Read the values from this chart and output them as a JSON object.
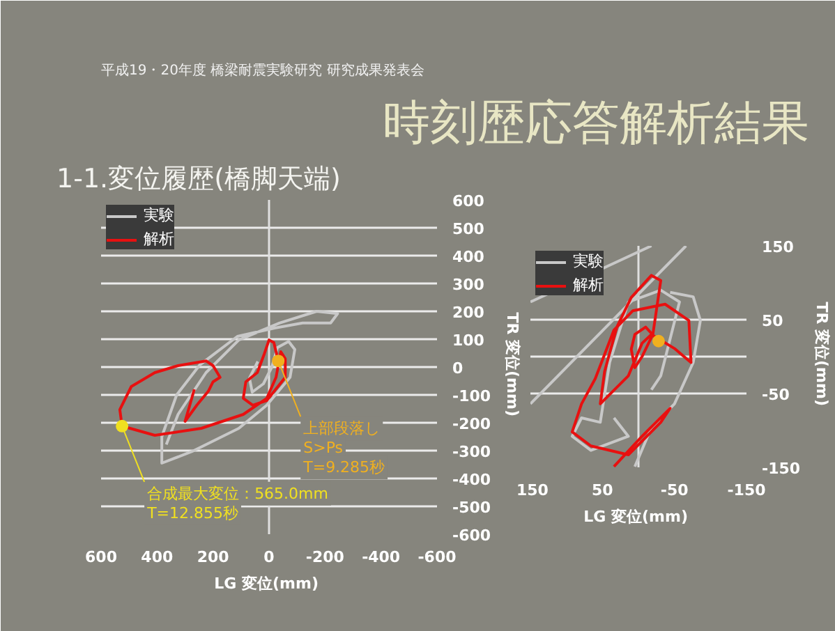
{
  "chart_data": [
    {
      "type": "line",
      "title": "時刻歴応答解析結果",
      "subtitle": "1-1.変位履歴(橋脚天端)",
      "annotations": [
        "平成19・20年度 橋梁耐震実験研究 研究成果発表会",
        {
          "text": "上部段落し\nS>Ps\nT=9.285秒",
          "x": -33,
          "y": 22
        },
        {
          "text": "合成最大変位：565.0mm\nT=12.855秒",
          "x": 525,
          "y": -212
        }
      ],
      "xlabel": "LG  変位(mm)",
      "ylabel": "TR  変位(mm)",
      "xlim": [
        600,
        -600
      ],
      "ylim": [
        -600,
        600
      ],
      "xticks": [
        600,
        400,
        200,
        0,
        -200,
        -400,
        -600
      ],
      "yticks": [
        -600,
        -500,
        -400,
        -300,
        -200,
        -100,
        0,
        100,
        200,
        300,
        400,
        500,
        600
      ],
      "grid": "y",
      "legend": "top left",
      "ref_lines": [
        {
          "axis": "x",
          "value": 0,
          "label": null,
          "color": "#e0e0e0"
        }
      ],
      "series": [
        {
          "name": "実験",
          "color": "#c8c8c8",
          "x": [
            367,
            325,
            225,
            108,
            -37,
            -170,
            -245,
            -220,
            -120,
            -20,
            113,
            247,
            330,
            383,
            383,
            275,
            108,
            8,
            -75,
            -92,
            -70,
            -30,
            -10,
            20,
            60,
            70,
            40
          ],
          "values": [
            -278,
            -170,
            -20,
            97,
            158,
            200,
            192,
            158,
            158,
            140,
            110,
            8,
            -100,
            -250,
            -345,
            -303,
            -220,
            -137,
            -37,
            63,
            92,
            70,
            0,
            -60,
            -90,
            -40,
            20
          ]
        },
        {
          "name": "解析",
          "color": "#e81010",
          "x": [
            -33,
            -17,
            0,
            17,
            42,
            83,
            92,
            58,
            8,
            -58,
            -58,
            -42,
            -25,
            8,
            92,
            242,
            408,
            525,
            533,
            492,
            408,
            325,
            225,
            200,
            175,
            200,
            217,
            258,
            300,
            283,
            267
          ],
          "values": [
            22,
            88,
            97,
            47,
            -20,
            -53,
            -112,
            -137,
            -120,
            -37,
            30,
            55,
            -37,
            -112,
            -170,
            -220,
            -245,
            -212,
            -153,
            -70,
            -20,
            5,
            22,
            5,
            -37,
            -53,
            -87,
            -137,
            -195,
            -137,
            -80
          ]
        },
        {
          "type": "scatter",
          "color": "#f0b020",
          "x": [
            -33
          ],
          "values": [
            22
          ]
        },
        {
          "type": "scatter",
          "color": "#f0e020",
          "x": [
            525
          ],
          "values": [
            -212
          ]
        }
      ]
    },
    {
      "type": "line",
      "xlabel": "LG  変位(mm)",
      "ylabel": "TR  変位(mm)",
      "xlim": [
        150,
        -150
      ],
      "ylim": [
        -150,
        150
      ],
      "xticks": [
        150,
        50,
        -50,
        -150
      ],
      "yticks": [
        -150,
        -50,
        50,
        150
      ],
      "grid": "y",
      "legend": "top left",
      "ref_lines": [
        {
          "axis": "x",
          "value": 0,
          "label": null,
          "color": "#e0e0e0"
        },
        {
          "axis": "y",
          "value": 0,
          "label": null,
          "color": "#ebebeb"
        }
      ],
      "series": [
        {
          "name": "実験",
          "color": "#c8c8c8",
          "x": [
            150,
            -18,
            null,
            150,
            -66,
            null,
            -44,
            -76,
            -86,
            -76,
            -50,
            -18,
            5,
            null,
            34,
            14,
            66,
            92,
            79,
            53,
            40,
            14,
            -31,
            -57,
            -44,
            -31,
            -18
          ],
          "values": [
            74,
            150,
            null,
            -64,
            150,
            null,
            87,
            81,
            49,
            -8,
            -64,
            -96,
            -149,
            null,
            -83,
            -108,
            -127,
            -108,
            -83,
            -89,
            -8,
            74,
            90,
            74,
            24,
            -26,
            -45
          ]
        },
        {
          "name": "解析",
          "color": "#e81010",
          "x": [
            -28,
            -10,
            5,
            10,
            5,
            -5,
            -20,
            -31,
            -18,
            10,
            30,
            47,
            53,
            14,
            -5,
            -18,
            -50,
            -73,
            -70,
            -37,
            8,
            34,
            60,
            79,
            92,
            66,
            14,
            -31,
            -44,
            -5,
            34
          ],
          "values": [
            21,
            40,
            30,
            10,
            -15,
            0,
            30,
            103,
            110,
            80,
            40,
            -20,
            -64,
            -26,
            18,
            30,
            11,
            -8,
            49,
            71,
            62,
            36,
            -30,
            -64,
            -102,
            -121,
            -133,
            -89,
            -70,
            -108,
            -149
          ]
        },
        {
          "type": "scatter",
          "color": "#f0b020",
          "x": [
            -28
          ],
          "values": [
            21
          ]
        }
      ]
    }
  ]
}
